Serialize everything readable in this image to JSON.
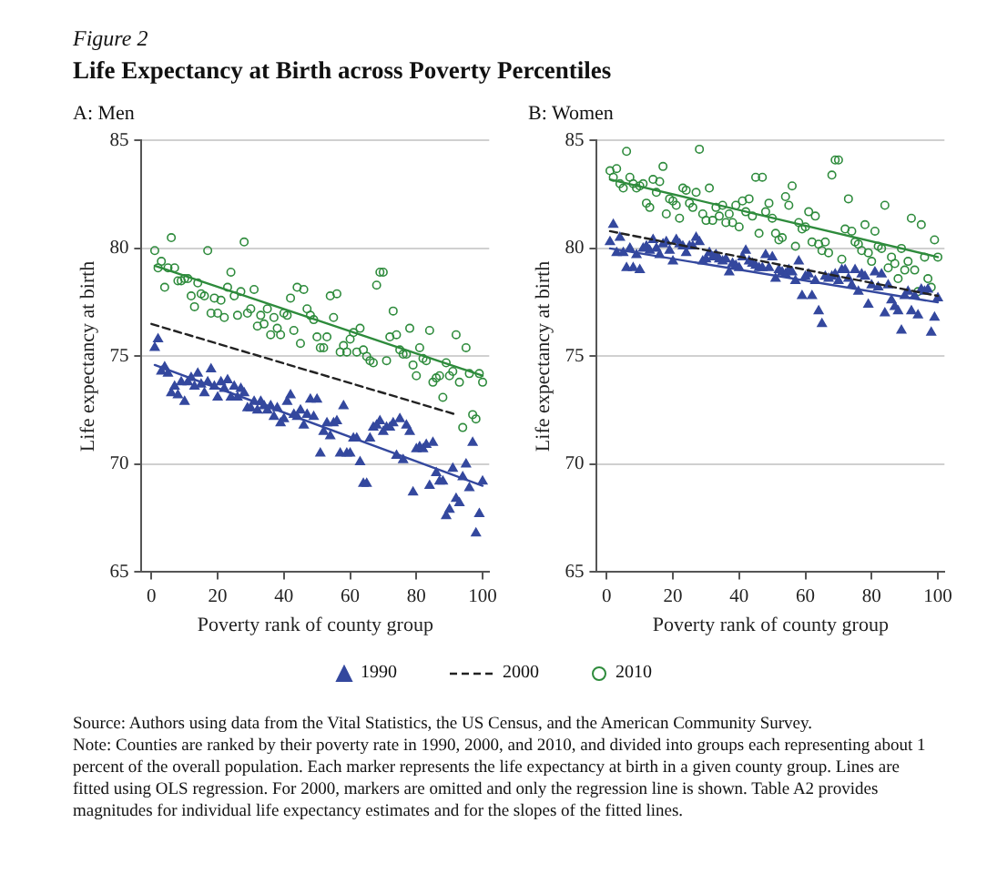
{
  "chart_data": [
    {
      "type": "scatter",
      "title": "A: Men",
      "xlabel": "Poverty rank of county group",
      "ylabel": "Life expectancy at birth",
      "annotations": [
        "Figure 2",
        "Life Expectancy at Birth across Poverty Percentiles",
        "Source: Authors using data from the Vital Statistics, the US Census, and the American Community Survey.",
        "Note: Counties are ranked by their poverty rate in 1990, 2000, and 2010, and divided into groups each representing about 1 percent of the overall population. Each marker represents the life expectancy at birth in a given county group. Lines are fitted using OLS regression. For 2000, markers are omitted and only the regression line is shown. Table A2 provides magnitudes for individual life expectancy estimates and for the slopes of the fitted lines."
      ],
      "xlim": [
        -3,
        102
      ],
      "xticks": [
        0,
        20,
        40,
        60,
        80,
        100
      ],
      "ylim": [
        65,
        85
      ],
      "yticks": [
        65,
        70,
        75,
        80,
        85
      ],
      "grid": "y",
      "legend": "bottom",
      "x": [
        1,
        2,
        3,
        4,
        5,
        6,
        7,
        8,
        9,
        10,
        11,
        12,
        13,
        14,
        15,
        16,
        17,
        18,
        19,
        20,
        21,
        22,
        23,
        24,
        25,
        26,
        27,
        28,
        29,
        30,
        31,
        32,
        33,
        34,
        35,
        36,
        37,
        38,
        39,
        40,
        41,
        42,
        43,
        44,
        45,
        46,
        47,
        48,
        49,
        50,
        51,
        52,
        53,
        54,
        55,
        56,
        57,
        58,
        59,
        60,
        61,
        62,
        63,
        64,
        65,
        66,
        67,
        68,
        69,
        70,
        71,
        72,
        73,
        74,
        75,
        76,
        77,
        78,
        79,
        80,
        81,
        82,
        83,
        84,
        85,
        86,
        87,
        88,
        89,
        90,
        91,
        92,
        93,
        94,
        95,
        96,
        97,
        98,
        99,
        100
      ],
      "series": [
        {
          "name": "1990",
          "type": "scatter",
          "marker": "triangle",
          "color": "#34489e",
          "values": [
            75.4,
            75.8,
            74.3,
            74.5,
            74.2,
            73.3,
            73.6,
            73.2,
            73.8,
            72.9,
            73.8,
            74.0,
            73.6,
            74.2,
            73.7,
            73.3,
            73.8,
            74.4,
            73.6,
            73.1,
            73.8,
            73.5,
            73.9,
            73.1,
            73.6,
            73.1,
            73.5,
            73.3,
            72.6,
            72.6,
            72.9,
            72.5,
            72.9,
            72.7,
            72.5,
            72.7,
            72.2,
            72.6,
            71.9,
            72.1,
            72.9,
            73.2,
            72.3,
            72.2,
            72.5,
            71.8,
            72.3,
            73.0,
            72.2,
            73.0,
            70.5,
            71.5,
            71.9,
            71.3,
            71.9,
            72.0,
            70.5,
            72.7,
            70.5,
            70.5,
            71.2,
            71.2,
            70.1,
            69.1,
            69.1,
            71.2,
            71.7,
            71.8,
            72.0,
            71.5,
            71.7,
            71.7,
            71.9,
            70.4,
            72.1,
            70.2,
            71.8,
            71.5,
            68.7,
            70.7,
            70.8,
            70.7,
            70.9,
            69.0,
            71.0,
            69.6,
            69.2,
            69.2,
            67.6,
            67.9,
            69.8,
            68.4,
            68.2,
            69.4,
            70.0,
            68.9,
            71.0,
            66.8,
            67.7,
            69.2
          ]
        },
        {
          "name": "2000",
          "type": "line",
          "line_style": "dashed",
          "color": "#222222",
          "x": [
            0,
            92
          ],
          "values": [
            76.5,
            72.3
          ]
        },
        {
          "name": "2010",
          "type": "scatter",
          "marker": "circle",
          "color": "#2e8b3c",
          "values": [
            79.9,
            79.1,
            79.4,
            78.2,
            79.1,
            80.5,
            79.1,
            78.5,
            78.5,
            78.6,
            78.6,
            77.8,
            77.3,
            78.4,
            77.9,
            77.8,
            79.9,
            77.0,
            77.7,
            77.0,
            77.6,
            76.8,
            78.2,
            78.9,
            77.8,
            76.9,
            78.0,
            80.3,
            77.0,
            77.2,
            78.1,
            76.4,
            76.9,
            76.5,
            77.2,
            76.0,
            76.8,
            76.3,
            76.0,
            77.0,
            76.9,
            77.7,
            76.2,
            78.2,
            75.6,
            78.1,
            77.2,
            76.9,
            76.7,
            75.9,
            75.4,
            75.4,
            75.9,
            77.8,
            76.8,
            77.9,
            75.2,
            75.5,
            75.2,
            75.8,
            76.1,
            75.2,
            76.3,
            75.3,
            75.0,
            74.8,
            74.7,
            78.3,
            78.9,
            78.9,
            74.8,
            75.9,
            77.1,
            76.0,
            75.3,
            75.1,
            75.1,
            76.3,
            74.6,
            74.1,
            75.4,
            74.9,
            74.8,
            76.2,
            73.8,
            74.0,
            74.1,
            73.1,
            74.7,
            74.1,
            74.3,
            76.0,
            73.8,
            71.7,
            75.4,
            74.2,
            72.3,
            72.1,
            74.2,
            73.8
          ]
        },
        {
          "type": "line",
          "line_style": "solid",
          "color": "#34489e",
          "x": [
            1,
            100
          ],
          "values": [
            74.6,
            69.0
          ]
        },
        {
          "type": "line",
          "line_style": "solid",
          "color": "#2e8b3c",
          "x": [
            1,
            100
          ],
          "values": [
            79.2,
            74.1
          ]
        }
      ]
    },
    {
      "type": "scatter",
      "title": "B: Women",
      "xlabel": "Poverty rank of county group",
      "ylabel": "Life expectancy at birth",
      "xlim": [
        -3,
        102
      ],
      "xticks": [
        0,
        20,
        40,
        60,
        80,
        100
      ],
      "ylim": [
        65,
        85
      ],
      "yticks": [
        65,
        70,
        75,
        80,
        85
      ],
      "grid": "y",
      "x": [
        1,
        2,
        3,
        4,
        5,
        6,
        7,
        8,
        9,
        10,
        11,
        12,
        13,
        14,
        15,
        16,
        17,
        18,
        19,
        20,
        21,
        22,
        23,
        24,
        25,
        26,
        27,
        28,
        29,
        30,
        31,
        32,
        33,
        34,
        35,
        36,
        37,
        38,
        39,
        40,
        41,
        42,
        43,
        44,
        45,
        46,
        47,
        48,
        49,
        50,
        51,
        52,
        53,
        54,
        55,
        56,
        57,
        58,
        59,
        60,
        61,
        62,
        63,
        64,
        65,
        66,
        67,
        68,
        69,
        70,
        71,
        72,
        73,
        74,
        75,
        76,
        77,
        78,
        79,
        80,
        81,
        82,
        83,
        84,
        85,
        86,
        87,
        88,
        89,
        90,
        91,
        92,
        93,
        94,
        95,
        96,
        97,
        98,
        99,
        100
      ],
      "series": [
        {
          "name": "1990",
          "type": "scatter",
          "marker": "triangle",
          "color": "#34489e",
          "values": [
            80.3,
            81.1,
            79.8,
            80.5,
            79.8,
            79.1,
            80.0,
            79.1,
            79.7,
            79.0,
            80.0,
            80.1,
            79.9,
            80.4,
            80.0,
            79.7,
            80.2,
            80.3,
            79.9,
            79.4,
            80.4,
            80.2,
            80.1,
            79.8,
            80.1,
            80.1,
            80.5,
            80.3,
            79.4,
            79.5,
            79.8,
            79.6,
            79.7,
            79.5,
            79.4,
            79.5,
            78.9,
            79.3,
            79.2,
            79.1,
            79.6,
            79.9,
            79.4,
            79.3,
            79.2,
            79.1,
            79.1,
            79.7,
            79.1,
            79.6,
            78.6,
            79.0,
            78.9,
            78.8,
            79.0,
            78.9,
            78.5,
            79.4,
            77.8,
            78.7,
            78.8,
            77.8,
            78.5,
            77.1,
            76.5,
            78.7,
            78.6,
            78.7,
            78.8,
            78.5,
            79.0,
            79.0,
            78.6,
            78.3,
            79.0,
            78.0,
            78.8,
            78.7,
            77.4,
            78.3,
            78.9,
            78.2,
            78.8,
            77.0,
            78.3,
            77.6,
            77.3,
            77.1,
            76.2,
            77.8,
            78.0,
            77.1,
            77.8,
            76.9,
            78.1,
            78.0,
            78.1,
            76.1,
            76.8,
            77.7
          ]
        },
        {
          "name": "2000",
          "type": "line",
          "line_style": "dashed",
          "color": "#222222",
          "x": [
            1,
            100
          ],
          "values": [
            80.8,
            77.8
          ]
        },
        {
          "name": "2010",
          "type": "scatter",
          "marker": "circle",
          "color": "#2e8b3c",
          "values": [
            83.6,
            83.3,
            83.7,
            83.0,
            82.8,
            84.5,
            83.3,
            83.0,
            82.8,
            82.9,
            83.0,
            82.1,
            81.9,
            83.2,
            82.6,
            83.1,
            83.8,
            81.6,
            82.3,
            82.2,
            82.0,
            81.4,
            82.8,
            82.7,
            82.1,
            81.9,
            82.6,
            84.6,
            81.6,
            81.3,
            82.8,
            81.3,
            81.9,
            81.5,
            82.0,
            81.2,
            81.6,
            81.2,
            82.0,
            81.0,
            82.2,
            81.7,
            82.3,
            81.5,
            83.3,
            80.7,
            83.3,
            81.7,
            82.1,
            81.4,
            80.7,
            80.4,
            80.5,
            82.4,
            82.0,
            82.9,
            80.1,
            81.2,
            80.9,
            81.0,
            81.7,
            80.3,
            81.5,
            80.2,
            79.9,
            80.3,
            79.8,
            83.4,
            84.1,
            84.1,
            79.5,
            80.9,
            82.3,
            80.8,
            80.3,
            80.2,
            79.9,
            81.1,
            79.8,
            79.4,
            80.8,
            80.1,
            80.0,
            82.0,
            79.1,
            79.6,
            79.3,
            78.6,
            80.0,
            79.0,
            79.4,
            81.4,
            79.0,
            78.0,
            81.1,
            79.6,
            78.6,
            78.2,
            80.4,
            79.6
          ]
        },
        {
          "type": "line",
          "line_style": "solid",
          "color": "#34489e",
          "x": [
            1,
            100
          ],
          "values": [
            80.0,
            77.5
          ]
        },
        {
          "type": "line",
          "line_style": "solid",
          "color": "#2e8b3c",
          "x": [
            1,
            100
          ],
          "values": [
            83.2,
            79.6
          ]
        }
      ]
    }
  ]
}
